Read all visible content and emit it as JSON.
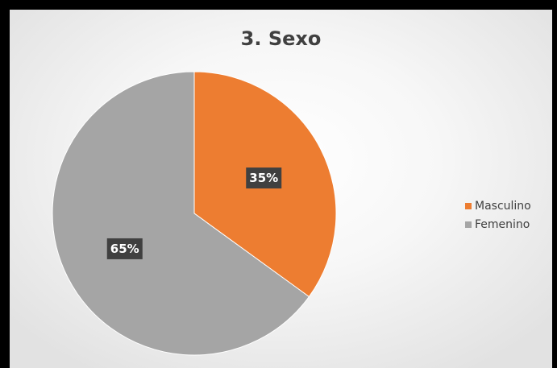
{
  "chart_data": {
    "type": "pie",
    "title": "3. Sexo",
    "categories": [
      "Masculino",
      "Femenino"
    ],
    "values": [
      35,
      65
    ],
    "data_labels": [
      "35%",
      "65%"
    ],
    "colors": [
      "#ed7d31",
      "#a5a5a5"
    ],
    "label_box_color": "#404040",
    "legend_position": "right"
  }
}
